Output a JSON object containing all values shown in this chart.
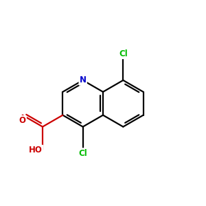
{
  "background_color": "#ffffff",
  "bond_color": "#000000",
  "N_color": "#0000cc",
  "Cl_color": "#00bb00",
  "O_color": "#cc0000",
  "bond_width": 1.6,
  "dbo": 0.012,
  "figsize": [
    3.0,
    3.0
  ],
  "dpi": 100,
  "xlim": [
    0.0,
    1.0
  ],
  "ylim": [
    0.0,
    1.0
  ]
}
